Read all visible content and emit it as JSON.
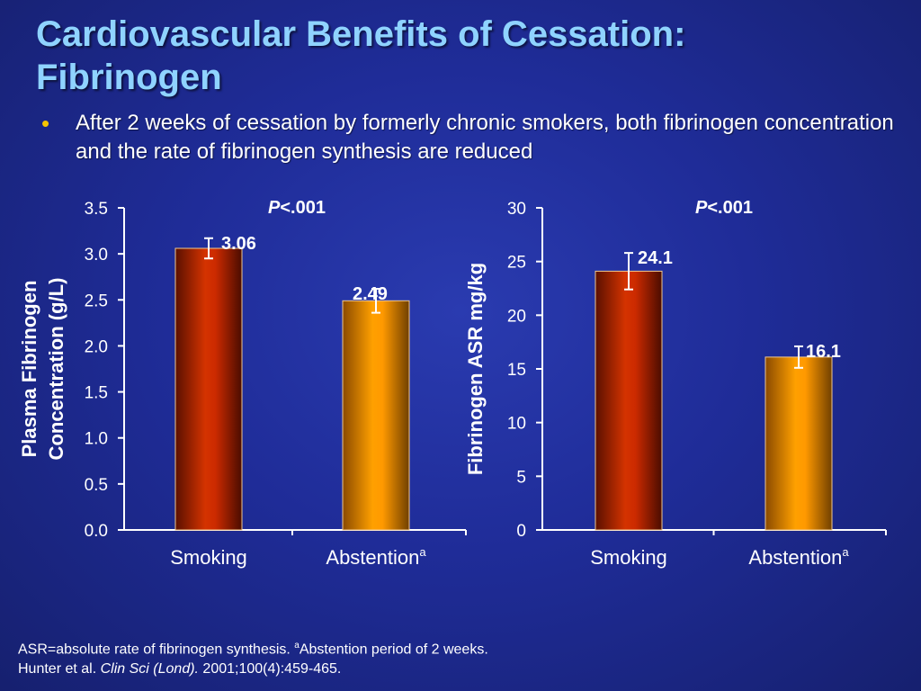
{
  "slide": {
    "title_line1": "Cardiovascular Benefits of Cessation:",
    "title_line2": "Fibrinogen",
    "bullet": "After 2 weeks of cessation by formerly chronic smokers, both fibrinogen concentration and the rate of fibrinogen synthesis are reduced"
  },
  "footnote": {
    "line1_prefix": "ASR=absolute rate of fibrinogen synthesis. ",
    "line1_sup": "a",
    "line1_suffix": "Abstention period of 2 weeks.",
    "line2_authors": "Hunter et al. ",
    "line2_journal": "Clin Sci (Lond).",
    "line2_citation": " 2001;100(4):459-465."
  },
  "colors": {
    "smoking_bar": "#cc2a00",
    "abstention_bar": "#ff9900",
    "title": "#8fd3ff",
    "bullet_dot": "#f5c400"
  },
  "chart_data": [
    {
      "type": "bar",
      "categories": [
        "Smoking",
        "Abstention"
      ],
      "category_superscripts": [
        "",
        "a"
      ],
      "values": [
        3.06,
        2.49
      ],
      "value_labels": [
        "3.06",
        "2.49"
      ],
      "error_bars": [
        0.11,
        0.13
      ],
      "ylabel_line1": "Plasma Fibrinogen",
      "ylabel_line2": "Concentration (g/L)",
      "ylim": [
        0,
        3.5
      ],
      "yticks": [
        0,
        0.5,
        1.0,
        1.5,
        2.0,
        2.5,
        3.0,
        3.5
      ],
      "ytick_labels": [
        "0.0",
        "0.5",
        "1.0",
        "1.5",
        "2.0",
        "2.5",
        "3.0",
        "3.5"
      ],
      "p_value_italic": "P",
      "p_value_rest": "<.001"
    },
    {
      "type": "bar",
      "categories": [
        "Smoking",
        "Abstention"
      ],
      "category_superscripts": [
        "",
        "a"
      ],
      "values": [
        24.1,
        16.1
      ],
      "value_labels": [
        "24.1",
        "16.1"
      ],
      "error_bars": [
        1.7,
        1.0
      ],
      "ylabel_line1": "Fibrinogen ASR mg/kg",
      "ylabel_line2": "",
      "ylim": [
        0,
        30
      ],
      "yticks": [
        0,
        5,
        10,
        15,
        20,
        25,
        30
      ],
      "ytick_labels": [
        "0",
        "5",
        "10",
        "15",
        "20",
        "25",
        "30"
      ],
      "p_value_italic": "P",
      "p_value_rest": "<.001"
    }
  ]
}
